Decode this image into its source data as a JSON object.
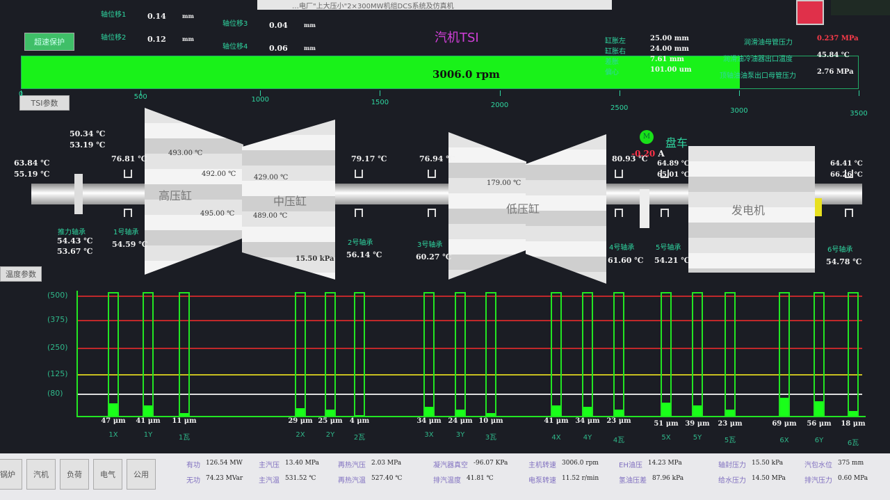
{
  "header": {
    "window_title": "…电厂\"上大压小\"2×300MW机组DCS系统及仿真机",
    "page_title": "汽机TSI",
    "speed_button": "超速保护",
    "tsi_param_button": "TSI参数",
    "temp_param_button": "温度参数"
  },
  "axial": [
    {
      "label": "轴位移1",
      "value": "0.14",
      "unit": "mm"
    },
    {
      "label": "轴位移2",
      "value": "0.12",
      "unit": "mm"
    },
    {
      "label": "轴位移3",
      "value": "0.04",
      "unit": "mm"
    },
    {
      "label": "轴位移4",
      "value": "0.06",
      "unit": "mm"
    }
  ],
  "expansion": [
    {
      "label": "缸胀左",
      "value": "25.00 mm"
    },
    {
      "label": "缸胀右",
      "value": "24.00 mm"
    },
    {
      "label": "差胀",
      "value": "7.61 mm"
    },
    {
      "label": "偏心",
      "value": "101.00 um"
    }
  ],
  "oil": [
    {
      "label": "润滑油母管压力",
      "value": "0.237 MPa",
      "color": "#ff3b4a"
    },
    {
      "label": "润滑油冷油器出口温度",
      "value": "45.84 ℃"
    },
    {
      "label": "顶轴油油泵出口母管压力",
      "value": "2.76 MPa"
    }
  ],
  "speed": {
    "value": 3006.0,
    "text": "3006.0 rpm",
    "max": 3500,
    "ticks": [
      "0",
      "500",
      "1000",
      "1500",
      "2000",
      "2500",
      "3000",
      "3500"
    ],
    "bar_color": "#19f219"
  },
  "turbine": {
    "hp_label": "高压缸",
    "ip_label": "中压缸",
    "lp_label": "低压缸",
    "gen_label": "发电机",
    "hp_temps": [
      "493.00 ℃",
      "492.00 ℃",
      "495.00 ℃"
    ],
    "ip_temps": [
      "429.00 ℃",
      "489.00 ℃"
    ],
    "lp_temp": "179.00 ℃",
    "exhaust": "15.50 kPa",
    "thrust": {
      "label": "推力轴承",
      "top": [
        "50.34 ℃",
        "53.19 ℃"
      ],
      "left": [
        "63.84 ℃",
        "55.19 ℃"
      ],
      "bottom": [
        "54.43 ℃",
        "53.67 ℃"
      ]
    },
    "bearings": [
      {
        "label": "1号轴承",
        "top": "76.81 ℃",
        "bottom": "54.59 ℃"
      },
      {
        "label": "2号轴承",
        "top": "79.17 ℃",
        "bottom": "56.14 ℃"
      },
      {
        "label": "3号轴承",
        "top": "76.94 ℃",
        "bottom": "60.27 ℃"
      },
      {
        "label": "4号轴承",
        "top": "80.93 ℃",
        "bottom": "61.60 ℃"
      },
      {
        "label": "5号轴承",
        "top": [
          "64.89 ℃",
          "65.01 ℃"
        ],
        "bottom": "54.21 ℃"
      },
      {
        "label": "6号轴承",
        "top": [
          "64.41 ℃",
          "66.26 ℃"
        ],
        "bottom": "54.78 ℃"
      }
    ],
    "turning": {
      "label": "盘车",
      "motor": "M",
      "current": "-0.20",
      "unit": "A",
      "motor_color": "#19e019"
    }
  },
  "vibration": {
    "y_ticks": [
      "(500)",
      "(375)",
      "(250)",
      "(125)",
      "(80)"
    ],
    "line_colors": [
      "#c0282a",
      "#c0282a",
      "#c0282a",
      "#c9c020",
      "#dddddd"
    ],
    "bars": [
      {
        "name": "1X",
        "value": 47,
        "text": "47 μm"
      },
      {
        "name": "1Y",
        "value": 41,
        "text": "41 μm"
      },
      {
        "name": "1瓦",
        "value": 11,
        "text": "11 μm"
      },
      {
        "name": "2X",
        "value": 29,
        "text": "29 μm"
      },
      {
        "name": "2Y",
        "value": 25,
        "text": "25 μm"
      },
      {
        "name": "2瓦",
        "value": 4,
        "text": "4 μm"
      },
      {
        "name": "3X",
        "value": 34,
        "text": "34 μm"
      },
      {
        "name": "3Y",
        "value": 24,
        "text": "24 μm"
      },
      {
        "name": "3瓦",
        "value": 10,
        "text": "10 μm"
      },
      {
        "name": "4X",
        "value": 41,
        "text": "41 μm"
      },
      {
        "name": "4Y",
        "value": 34,
        "text": "34 μm"
      },
      {
        "name": "4瓦",
        "value": 23,
        "text": "23 μm"
      },
      {
        "name": "5X",
        "value": 51,
        "text": "51 μm"
      },
      {
        "name": "5Y",
        "value": 39,
        "text": "39 μm"
      },
      {
        "name": "5瓦",
        "value": 23,
        "text": "23 μm"
      },
      {
        "name": "6X",
        "value": 69,
        "text": "69 μm"
      },
      {
        "name": "6Y",
        "value": 56,
        "text": "56 μm"
      },
      {
        "name": "6瓦",
        "value": 18,
        "text": "18 μm"
      }
    ]
  },
  "footer": {
    "nav": [
      "锅炉",
      "汽机",
      "负荷",
      "电气",
      "公用"
    ],
    "row1": [
      [
        "有功",
        "126.54 MW"
      ],
      [
        "主汽压",
        "13.40 MPa"
      ],
      [
        "再热汽压",
        "2.03 MPa"
      ],
      [
        "凝汽器真空",
        "-96.07 KPa"
      ],
      [
        "主机转速",
        "3006.0 rpm"
      ],
      [
        "EH油压",
        "14.23 MPa"
      ],
      [
        "轴封压力",
        "15.50 kPa"
      ],
      [
        "汽包水位",
        "375 mm"
      ]
    ],
    "row2": [
      [
        "无功",
        "74.23 MVar"
      ],
      [
        "主汽温",
        "531.52 ℃"
      ],
      [
        "再热汽温",
        "527.40 ℃"
      ],
      [
        "排汽温度",
        "41.81 ℃"
      ],
      [
        "电泵转速",
        "11.52 r/min"
      ],
      [
        "氢油压差",
        "87.96 kPa"
      ],
      [
        "给水压力",
        "14.50 MPa"
      ],
      [
        "排汽压力",
        "0.60 MPa"
      ]
    ]
  }
}
